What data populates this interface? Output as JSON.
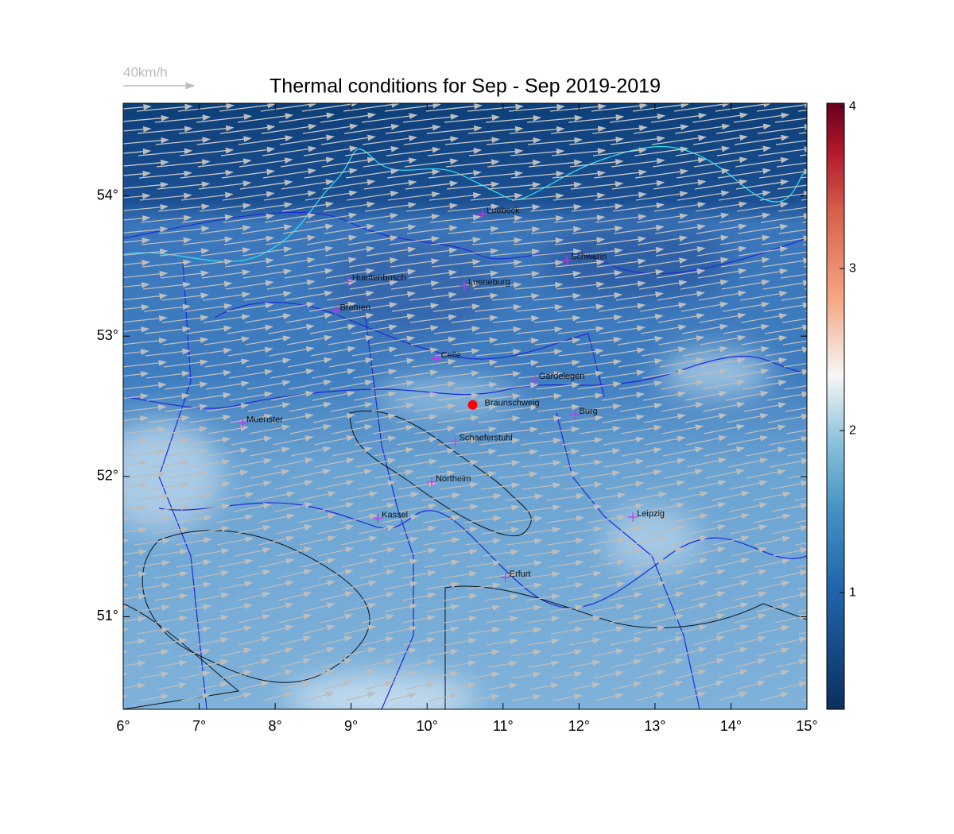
{
  "map": {
    "title": "Thermal conditions for Sep - Sep  2019-2019",
    "wind_key": "40km/h",
    "xlim": [
      6,
      15
    ],
    "ylim": [
      50.34,
      54.66
    ],
    "xticks": [
      {
        "value": 6,
        "label": "6°"
      },
      {
        "value": 7,
        "label": "7°"
      },
      {
        "value": 8,
        "label": "8°"
      },
      {
        "value": 9,
        "label": "9°"
      },
      {
        "value": 10,
        "label": "10°"
      },
      {
        "value": 11,
        "label": "11°"
      },
      {
        "value": 12,
        "label": "12°"
      },
      {
        "value": 13,
        "label": "13°"
      },
      {
        "value": 14,
        "label": "14°"
      },
      {
        "value": 15,
        "label": "15°"
      }
    ],
    "yticks": [
      {
        "value": 51,
        "label": "51°"
      },
      {
        "value": 52,
        "label": "52°"
      },
      {
        "value": 53,
        "label": "53°"
      },
      {
        "value": 54,
        "label": "54°"
      }
    ],
    "colorbar": {
      "lim": [
        0.28,
        4.02
      ],
      "ticks": [
        1,
        2,
        3,
        4
      ]
    },
    "marker": {
      "name": "Braunschweig",
      "lon": 10.6,
      "lat": 52.51,
      "color": "#ff0000"
    },
    "cities": [
      {
        "name": "Luebeck",
        "lon": 10.73,
        "lat": 53.87
      },
      {
        "name": "Schwerin",
        "lon": 11.84,
        "lat": 53.54
      },
      {
        "name": "Huettenbusch",
        "lon": 8.96,
        "lat": 53.39
      },
      {
        "name": "Lueneburg",
        "lon": 10.49,
        "lat": 53.36
      },
      {
        "name": "Bremen",
        "lon": 8.8,
        "lat": 53.18
      },
      {
        "name": "Celle",
        "lon": 10.13,
        "lat": 52.84
      },
      {
        "name": "Gardelegen",
        "lon": 11.42,
        "lat": 52.69
      },
      {
        "name": "Burg",
        "lon": 11.95,
        "lat": 52.44
      },
      {
        "name": "Muenster",
        "lon": 7.57,
        "lat": 52.38
      },
      {
        "name": "Schaeferstuhl",
        "lon": 10.37,
        "lat": 52.25
      },
      {
        "name": "Northeim",
        "lon": 10.06,
        "lat": 51.96
      },
      {
        "name": "Kassel",
        "lon": 9.35,
        "lat": 51.7
      },
      {
        "name": "Leipzig",
        "lon": 12.71,
        "lat": 51.71
      },
      {
        "name": "Erfurt",
        "lon": 11.03,
        "lat": 51.28
      }
    ]
  }
}
